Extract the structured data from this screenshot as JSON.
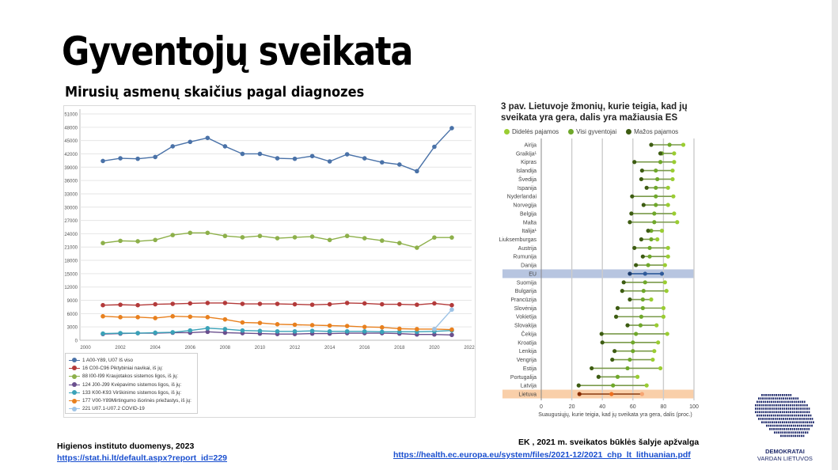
{
  "title": "Gyventojų sveikata",
  "subtitle": "Mirusių asmenų skaičius pagal diagnozes",
  "chart_data": [
    {
      "type": "line",
      "title": "",
      "xlabel": "",
      "ylabel": "",
      "x": [
        2001,
        2002,
        2003,
        2004,
        2005,
        2006,
        2007,
        2008,
        2009,
        2010,
        2011,
        2012,
        2013,
        2014,
        2015,
        2016,
        2017,
        2018,
        2019,
        2020,
        2021
      ],
      "xlim": [
        2000,
        2022
      ],
      "xticks": [
        2000,
        2002,
        2004,
        2006,
        2008,
        2010,
        2012,
        2014,
        2016,
        2018,
        2020,
        2022
      ],
      "ylim": [
        0,
        51000
      ],
      "yticks": [
        0,
        3000,
        6000,
        9000,
        12000,
        15000,
        18000,
        21000,
        24000,
        27000,
        30000,
        33000,
        36000,
        39000,
        42000,
        45000,
        48000,
        51000
      ],
      "grid": true,
      "legend_position": "bottom-left",
      "series": [
        {
          "name": "1 A00-Y89, U07 Iš viso",
          "color": "#4a72a8",
          "values": [
            40400,
            41000,
            40900,
            41300,
            43700,
            44700,
            45600,
            43700,
            42000,
            42000,
            41000,
            40900,
            41500,
            40300,
            41900,
            41000,
            40100,
            39600,
            38100,
            43600,
            47800
          ]
        },
        {
          "name": "16 C00-C96 Piktybiniai navikai, iš jų:",
          "color": "#b33a3a",
          "values": [
            7900,
            8000,
            7900,
            8100,
            8200,
            8300,
            8400,
            8400,
            8200,
            8200,
            8200,
            8100,
            8000,
            8100,
            8400,
            8300,
            8100,
            8100,
            8000,
            8300,
            7900
          ]
        },
        {
          "name": "88 I00-I99 Kraujotakos sistemos ligos, iš jų:",
          "color": "#8db04a",
          "values": [
            21900,
            22400,
            22300,
            22600,
            23700,
            24200,
            24200,
            23500,
            23200,
            23500,
            23000,
            23200,
            23350,
            22600,
            23500,
            23000,
            22450,
            21900,
            20850,
            23150,
            23150
          ]
        },
        {
          "name": "124 J00-J99 Kvėpavimo sistemos ligos, iš jų:",
          "color": "#6a4f8e",
          "values": [
            1400,
            1500,
            1600,
            1600,
            1700,
            1700,
            1900,
            1700,
            1600,
            1500,
            1400,
            1400,
            1500,
            1500,
            1600,
            1600,
            1600,
            1500,
            1300,
            1300,
            1200
          ]
        },
        {
          "name": "133 K00-K93 Virškinimo sistemos ligos, iš jų:",
          "color": "#3aa2b8",
          "values": [
            1500,
            1600,
            1600,
            1700,
            1800,
            2200,
            2700,
            2500,
            2200,
            2100,
            2000,
            2000,
            2100,
            2000,
            2000,
            2000,
            1900,
            1900,
            1900,
            2000,
            2200
          ]
        },
        {
          "name": "177 V00-Y89Mirtingumo išorinės priežastys, iš jų:",
          "color": "#e8801e",
          "values": [
            5400,
            5200,
            5200,
            5000,
            5400,
            5300,
            5200,
            4700,
            4000,
            3900,
            3600,
            3500,
            3400,
            3300,
            3200,
            3000,
            2900,
            2600,
            2500,
            2500,
            2400
          ]
        },
        {
          "name": "221 U07.1-U07.2 COVID-19",
          "color": "#9dc3e6",
          "values": [
            null,
            null,
            null,
            null,
            null,
            null,
            null,
            null,
            null,
            null,
            null,
            null,
            null,
            null,
            null,
            null,
            null,
            null,
            null,
            2500,
            6900
          ]
        }
      ]
    },
    {
      "type": "dumbbell",
      "title": "3 pav. Lietuvoje žmonių, kurie teigia, kad jų sveikata yra gera, dalis yra mažiausia ES",
      "xlabel": "Suaugusiųjų, kurie teigia, kad jų sveikata yra gera, dalis (proc.)",
      "xlim": [
        0,
        100
      ],
      "xticks": [
        0,
        20,
        40,
        60,
        80,
        100
      ],
      "legend": [
        {
          "name": "Didelės pajamos",
          "color": "#9acd32"
        },
        {
          "name": "Visi gyventojai",
          "color": "#6fa82a"
        },
        {
          "name": "Mažos pajamos",
          "color": "#3d5c12"
        }
      ],
      "highlight": {
        "EU": "#b7c5e0",
        "Lietuva": "#f9cfa9"
      },
      "categories": [
        "Airija",
        "Graikija¹",
        "Kipras",
        "Islandija",
        "Švedija",
        "Ispanija",
        "Nyderlandai",
        "Norvegija",
        "Belgija",
        "Malta",
        "Italija¹",
        "Liuksemburgas",
        "Austrija",
        "Rumunija",
        "Danija",
        "EU",
        "Suomija",
        "Bulgarija",
        "Prancūzija",
        "Slovėnija",
        "Vokietija",
        "Slovakija",
        "Čekija",
        "Kroatija",
        "Lenkija",
        "Vengrija",
        "Estija",
        "Portugalija",
        "Latvija",
        "Lietuva"
      ],
      "low": [
        72,
        78,
        61,
        66,
        65.5,
        69,
        59.5,
        67,
        59,
        58,
        70,
        65.5,
        61,
        66.5,
        62,
        58,
        54,
        53,
        58,
        50,
        49,
        56.5,
        39.5,
        40,
        48,
        46.5,
        33,
        37.5,
        24.5,
        25
      ],
      "all": [
        84,
        79,
        78,
        75,
        76,
        75,
        75,
        75,
        74,
        74,
        72,
        72,
        71,
        71,
        70,
        68,
        68,
        67,
        66.5,
        66.5,
        65.5,
        65,
        62,
        60,
        60,
        58,
        56.5,
        50,
        47,
        46
      ],
      "high": [
        93,
        87,
        87,
        86,
        86,
        83,
        86.5,
        83,
        87,
        89,
        79,
        76,
        83,
        83,
        81,
        79,
        81,
        82,
        72,
        80,
        80,
        75.5,
        82.5,
        76.5,
        74,
        73,
        78,
        63,
        69,
        66
      ]
    }
  ],
  "footer": {
    "left_source": "Higienos instituto duomenys, 2023",
    "left_link": "https://stat.hi.lt/default.aspx?report_id=229",
    "right_source": "EK , 2021 m. sveikatos būklės šalyje apžvalga",
    "right_link": "https://health.ec.europa.eu/system/files/2021-12/2021_chp_lt_lithuanian.pdf"
  },
  "logo": {
    "line1": "DEMOKRATAI",
    "line2": "VARDAN LIETUVOS",
    "color": "#1f2a6b"
  }
}
